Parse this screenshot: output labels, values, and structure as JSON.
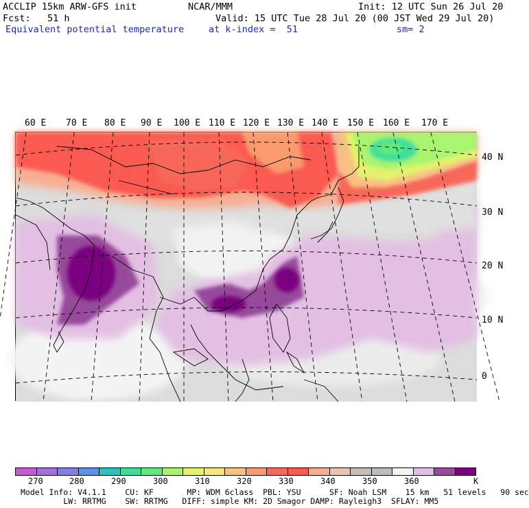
{
  "header": {
    "model_title": "ACCLIP 15km ARW-GFS init",
    "agency": "NCAR/MMM",
    "init": "Init: 12 UTC Sun 26 Jul 20",
    "forecast": "Fcst:   51 h",
    "valid": "Valid: 15 UTC Tue 28 Jul 20 (00 JST Wed 29 Jul 20)",
    "field_name": "Equivalent potential temperature",
    "level": "at k-index =  51",
    "smoothing": "sm= 2"
  },
  "map": {
    "longitude_labels": [
      "60 E",
      "70 E",
      "80 E",
      "90 E",
      "100 E",
      "110 E",
      "120 E",
      "130 E",
      "140 E",
      "150 E",
      "160 E",
      "170 E"
    ],
    "latitude_labels": [
      "40 N",
      "30 N",
      "20 N",
      "10 N",
      "0"
    ],
    "region": "Asia / Western Pacific"
  },
  "colorbar": {
    "unit": "K",
    "tick_labels": [
      "270",
      "280",
      "290",
      "300",
      "310",
      "320",
      "330",
      "340",
      "350",
      "360"
    ],
    "colors": [
      "#c25ad0",
      "#a070d8",
      "#7f7ee2",
      "#5f91ea",
      "#2ebfc0",
      "#3fdf9a",
      "#60ea7d",
      "#a9f46f",
      "#e5f26e",
      "#f7e57e",
      "#f8c183",
      "#f99b6e",
      "#f8685a",
      "#fa5a50",
      "#f7ae92",
      "#ecc3ac",
      "#c9bcb4",
      "#bdbdbd",
      "#f4f4f4",
      "#e3bfe3",
      "#97499b",
      "#7a007f"
    ]
  },
  "footer": {
    "line1": "Model Info: V4.1.1    CU: KF       MP: WDM 6class  PBL: YSU      SF: Noah LSM    15 km   51 levels   90 sec",
    "line2": "         LW: RRTMG    SW: RRTMG   DIFF: simple KM: 2D Smagor DAMP: Rayleigh3  SFLAY: MM5"
  }
}
